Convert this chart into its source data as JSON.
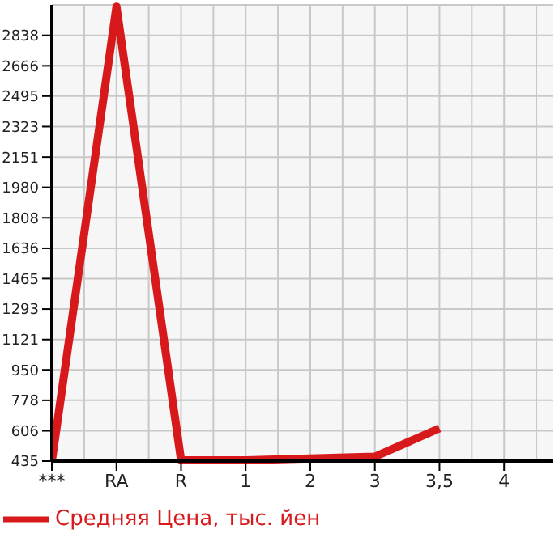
{
  "chart_data": {
    "type": "line",
    "categories": [
      "***",
      "RA",
      "R",
      "1",
      "2",
      "3",
      "3,5",
      "4"
    ],
    "series": [
      {
        "name": "Средняя Цена, тыс. йен",
        "color": "#d7191c",
        "values": [
          435,
          3000,
          440,
          440,
          450,
          460,
          620,
          null
        ]
      }
    ],
    "ylim": [
      435,
      3010
    ],
    "yticks": [
      435,
      606,
      778,
      950,
      1121,
      1293,
      1465,
      1636,
      1808,
      1980,
      2151,
      2323,
      2495,
      2666,
      2838
    ],
    "grid": true,
    "legend": "bottom",
    "marker": "none",
    "line_style": "solid"
  }
}
